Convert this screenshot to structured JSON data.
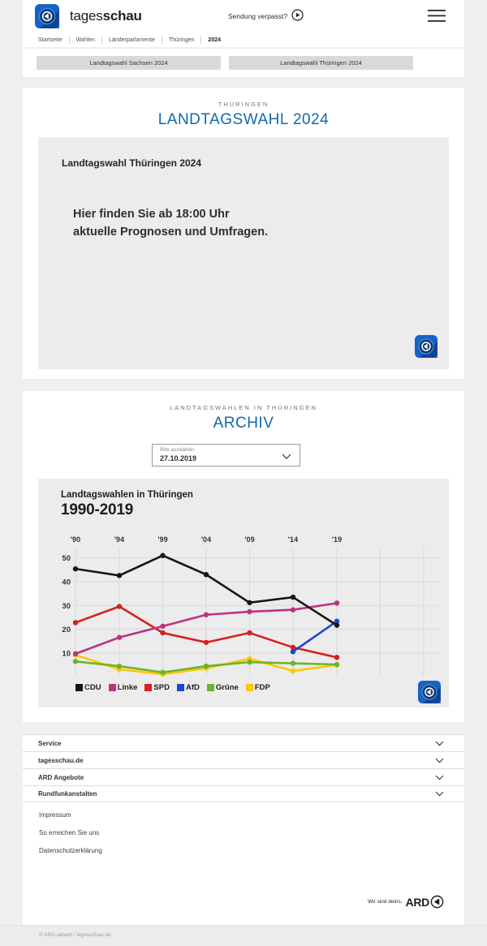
{
  "header": {
    "brand": {
      "name_regular": "tages",
      "name_bold": "schau"
    },
    "sendung_verpasst": "Sendung verpasst?",
    "breadcrumb": [
      "Startseite",
      "Wahlen",
      "Länderparlamente",
      "Thüringen",
      "2024"
    ]
  },
  "quicklinks": {
    "sachsen": "Landtagswahl Sachsen 2024",
    "thueringen": "Landtagswahl Thüringen 2024"
  },
  "hero": {
    "kicker": "THÜRINGEN",
    "title": "LANDTAGSWAHL 2024",
    "card_title": "Landtagswahl Thüringen 2024",
    "card_text_line1": "Hier finden Sie ab 18:00 Uhr",
    "card_text_line2": "aktuelle Prognosen und Umfragen."
  },
  "archive": {
    "kicker": "LANDTAGSWAHLEN IN THÜRINGEN",
    "title": "ARCHIV",
    "select_label": "Bitte auswählen",
    "select_value": "27.10.2019"
  },
  "chart_data": {
    "type": "line",
    "title": "Landtagswahlen in Thüringen",
    "subtitle": "1990-2019",
    "x_tick_labels": [
      "'90",
      "'94",
      "'99",
      "'04",
      "'09",
      "'14",
      "'19"
    ],
    "x_values": [
      1990,
      1994,
      1999,
      2004,
      2009,
      2014,
      2019
    ],
    "y_ticks": [
      10,
      20,
      30,
      40,
      50
    ],
    "ylim": [
      0,
      55
    ],
    "grid": true,
    "legend_position": "bottom",
    "unit": "percent",
    "series": [
      {
        "name": "CDU",
        "color": "#161616",
        "values": [
          45.4,
          42.6,
          51.0,
          43.0,
          31.2,
          33.5,
          21.7
        ]
      },
      {
        "name": "Linke",
        "color": "#be3183",
        "values": [
          9.7,
          16.6,
          21.3,
          26.1,
          27.4,
          28.2,
          31.0
        ]
      },
      {
        "name": "SPD",
        "color": "#d6201e",
        "values": [
          22.8,
          29.6,
          18.5,
          14.5,
          18.5,
          12.4,
          8.2
        ]
      },
      {
        "name": "AfD",
        "color": "#1b46cf",
        "values": [
          null,
          null,
          null,
          null,
          null,
          10.6,
          23.4
        ]
      },
      {
        "name": "Grüne",
        "color": "#69b42d",
        "values": [
          6.5,
          4.5,
          1.9,
          4.5,
          6.2,
          5.7,
          5.2
        ]
      },
      {
        "name": "FDP",
        "color": "#fcc700",
        "values": [
          9.2,
          3.2,
          1.1,
          3.6,
          7.6,
          2.5,
          5.0
        ]
      }
    ]
  },
  "footer": {
    "accordion": [
      "Service",
      "tagesschau.de",
      "ARD Angebote",
      "Rundfunkanstalten"
    ],
    "links": [
      "Impressum",
      "So erreichen Sie uns",
      "Datenschutzerklärung"
    ],
    "brand_claim": "Wir sind deins.",
    "brand_name": "ARD",
    "copyright": "© ARD-aktuell / tagesschau.de"
  },
  "colors": {
    "accent_blue": "#1368a9",
    "card_bg": "#ffffff",
    "page_bg": "#efefef",
    "box_bg": "#ececec",
    "button_bg": "#d9d9d9",
    "gridline": "#d9d9d9"
  }
}
